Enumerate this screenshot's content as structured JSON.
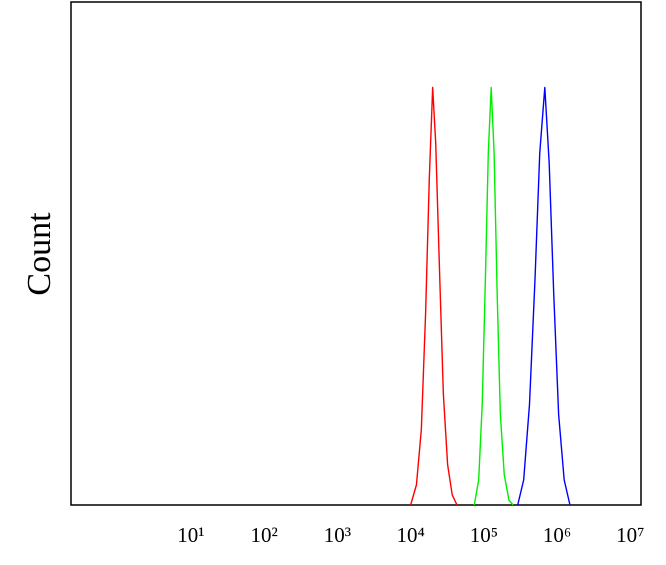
{
  "chart_data": {
    "type": "line",
    "ylabel": "Count",
    "xscale": "log",
    "xlim": [
      0.23,
      14000000
    ],
    "xticks": [
      {
        "value": 10,
        "label": "10¹"
      },
      {
        "value": 100,
        "label": "10²"
      },
      {
        "value": 1000,
        "label": "10³"
      },
      {
        "value": 10000,
        "label": "10⁴"
      },
      {
        "value": 100000,
        "label": "10⁵"
      },
      {
        "value": 1000000,
        "label": "10⁶"
      },
      {
        "value": 10000000,
        "label": "10⁷"
      }
    ],
    "ylim": [
      0,
      100
    ],
    "series": [
      {
        "color": "#ff0000",
        "x": [
          10000,
          12000,
          14000,
          16000,
          18000,
          20000,
          22000,
          25000,
          28000,
          32000,
          37000,
          43000
        ],
        "values": [
          0,
          4,
          15,
          38,
          65,
          83,
          72,
          45,
          22,
          8,
          2,
          0
        ]
      },
      {
        "color": "#00ee00",
        "x": [
          74000,
          85000,
          95000,
          105000,
          115000,
          126000,
          138000,
          152000,
          168000,
          190000,
          220000,
          250000
        ],
        "values": [
          0,
          5,
          20,
          45,
          70,
          83,
          70,
          42,
          18,
          6,
          1,
          0
        ]
      },
      {
        "color": "#0000ff",
        "x": [
          290000,
          350000,
          420000,
          500000,
          580000,
          680000,
          780000,
          900000,
          1050000,
          1250000,
          1500000
        ],
        "values": [
          0,
          5,
          20,
          45,
          70,
          83,
          68,
          42,
          18,
          5,
          0
        ]
      }
    ]
  }
}
